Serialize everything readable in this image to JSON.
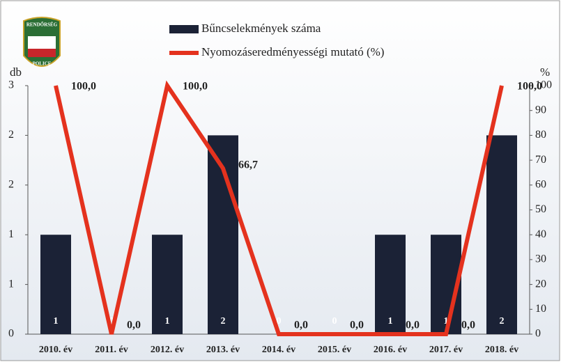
{
  "logo": {
    "top": "RENDŐRSÉG",
    "bottom": "POLICE"
  },
  "chart_data": {
    "type": "bar-line",
    "categories": [
      "2010. év",
      "2011. év",
      "2012. év",
      "2013. év",
      "2014. év",
      "2015. év",
      "2016. év",
      "2017. év",
      "2018. év"
    ],
    "series": [
      {
        "name": "Bűncselekmények száma",
        "color": "#1b2236",
        "type": "bar",
        "values": [
          1,
          0,
          1,
          2,
          0,
          0,
          1,
          1,
          2
        ]
      },
      {
        "name": "Nyomozáseredményességi mutató (%)",
        "color": "#e4321e",
        "type": "line",
        "axis": "y2",
        "values": [
          100,
          0,
          100,
          66.7,
          0,
          0,
          0,
          0,
          100
        ],
        "value_labels": [
          "100,0",
          "0,0",
          "100,0",
          "66,7",
          "0,0",
          "0,0",
          "0,0",
          "0,0",
          "100,0"
        ]
      }
    ],
    "ylabel": "db",
    "y2label": "%",
    "ylim": [
      0,
      2.5
    ],
    "yticks": [
      0,
      {
        "value": 0.5,
        "label": "1"
      },
      1,
      {
        "value": 1.5,
        "label": "2"
      },
      2,
      {
        "value": 2.5,
        "label": "3"
      }
    ],
    "y2lim": [
      0,
      100
    ],
    "y2ticks": [
      0,
      10,
      20,
      30,
      40,
      50,
      60,
      70,
      80,
      90,
      100
    ],
    "legend": "top"
  }
}
